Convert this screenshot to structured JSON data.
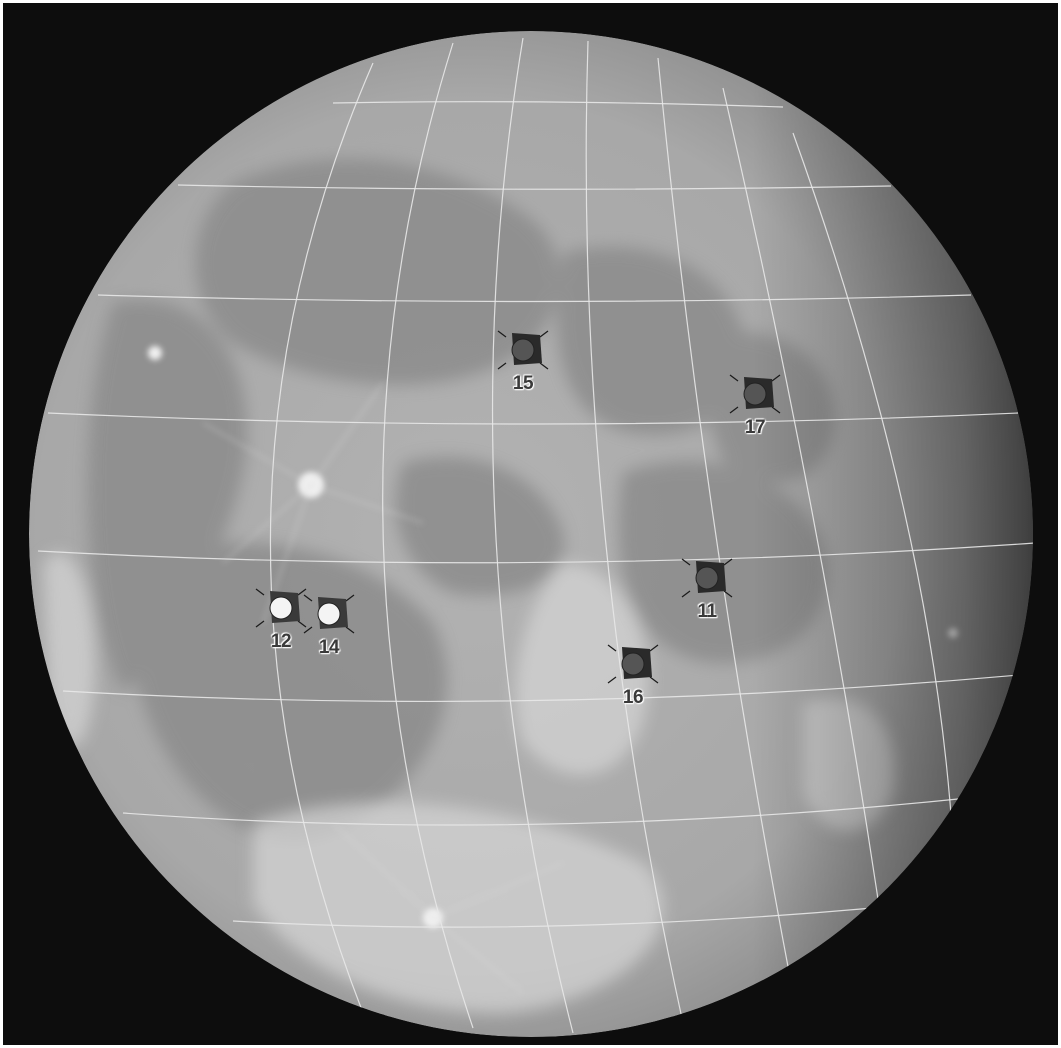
{
  "map": {
    "colors": {
      "background": "#0d0d0d",
      "moon_highlands": "#bdbdbd",
      "moon_maria": "#8a8a8a",
      "grid": "#e6e6e6",
      "label": "#3a3a3a"
    },
    "grid": true,
    "landing_sites": [
      {
        "id": "site-15",
        "label": "15",
        "icon": "lunar-module-icon",
        "style": "dark"
      },
      {
        "id": "site-17",
        "label": "17",
        "icon": "lunar-module-icon",
        "style": "dark"
      },
      {
        "id": "site-11",
        "label": "11",
        "icon": "lunar-module-icon",
        "style": "dark"
      },
      {
        "id": "site-12",
        "label": "12",
        "icon": "lunar-module-icon",
        "style": "light"
      },
      {
        "id": "site-14",
        "label": "14",
        "icon": "lunar-module-icon",
        "style": "light"
      },
      {
        "id": "site-16",
        "label": "16",
        "icon": "lunar-module-icon",
        "style": "dark"
      }
    ]
  }
}
